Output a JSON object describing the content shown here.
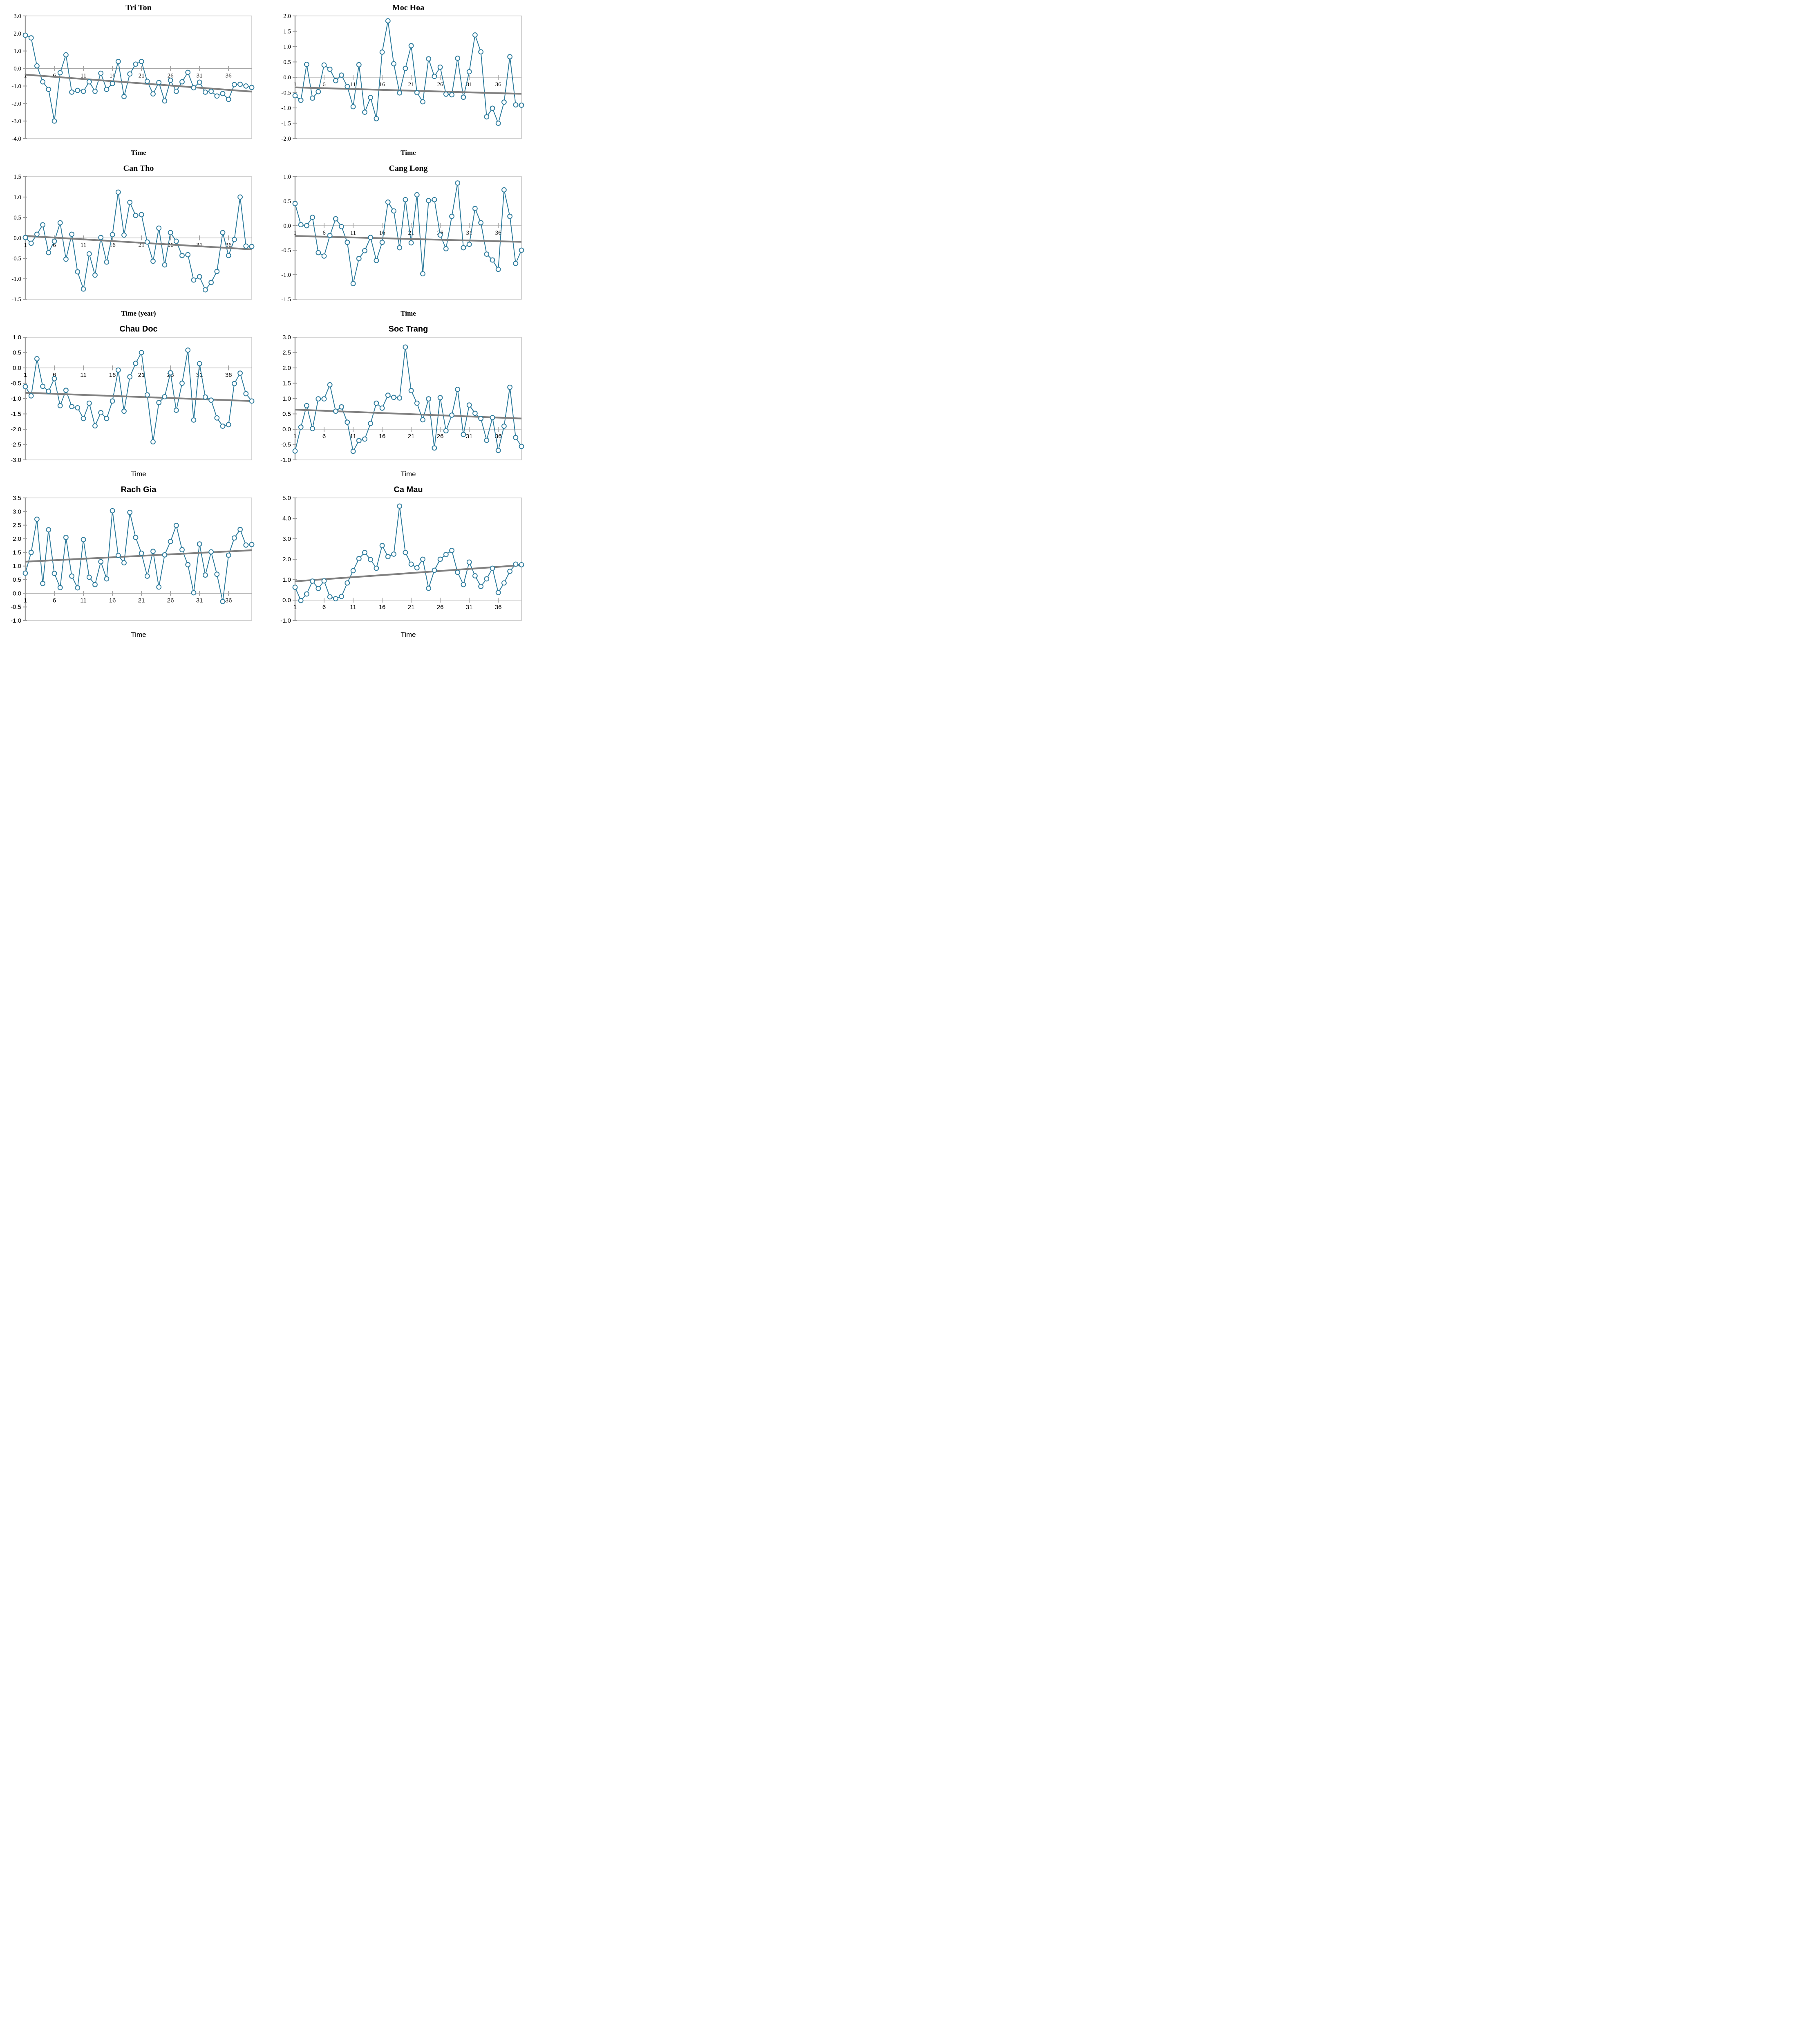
{
  "figure": {
    "description_visible_text_only": "grid of eight time-series charts",
    "columns": 2,
    "rows": 4
  },
  "colors": {
    "series_line": "#2E7C9D",
    "marker_fill": "#FFFFFF",
    "trend_line": "#808080",
    "axis_line": "#9B9B9B",
    "zero_line": "#A6A6A6",
    "frame": "#C9C9C9",
    "text": "#000000",
    "background": "#FFFFFF"
  },
  "chart_data": [
    {
      "type": "line",
      "title": "Tri Ton",
      "xlabel": "Time",
      "ylabel": "",
      "label_style": "serif",
      "ylim": [
        -4.0,
        3.0
      ],
      "ytick_step": 1.0,
      "xticks": [
        1,
        6,
        11,
        16,
        21,
        26,
        31,
        36
      ],
      "x_start": 1,
      "values": [
        1.9,
        1.75,
        0.15,
        -0.76,
        -1.19,
        -3.0,
        -0.24,
        0.78,
        -1.35,
        -1.25,
        -1.3,
        -0.76,
        -1.3,
        -0.27,
        -1.19,
        -0.86,
        0.4,
        -1.6,
        -0.31,
        0.25,
        0.4,
        -0.73,
        -1.45,
        -0.8,
        -1.85,
        -0.67,
        -1.3,
        -0.76,
        -0.22,
        -1.1,
        -0.78,
        -1.35,
        -1.3,
        -1.57,
        -1.43,
        -1.76,
        -0.92,
        -0.9,
        -1.0,
        -1.08
      ],
      "trend_line": {
        "start": -0.35,
        "end": -1.32
      },
      "grid": false,
      "legend": "none"
    },
    {
      "type": "line",
      "title": "Moc Hoa",
      "xlabel": "Time",
      "ylabel": "",
      "label_style": "serif",
      "ylim": [
        -2.0,
        2.0
      ],
      "ytick_step": 0.5,
      "xticks": [
        1,
        6,
        11,
        16,
        21,
        26,
        31,
        36
      ],
      "x_start": 1,
      "values": [
        -0.6,
        -0.75,
        0.42,
        -0.68,
        -0.47,
        0.4,
        0.26,
        -0.11,
        0.07,
        -0.3,
        -0.96,
        0.41,
        -1.14,
        -0.66,
        -1.35,
        0.82,
        1.84,
        0.44,
        -0.51,
        0.29,
        1.03,
        -0.5,
        -0.8,
        0.6,
        0.03,
        0.33,
        -0.55,
        -0.57,
        0.62,
        -0.65,
        0.18,
        1.38,
        0.83,
        -1.29,
        -1.01,
        -1.5,
        -0.81,
        0.67,
        -0.9,
        -0.91
      ],
      "trend_line": {
        "start": -0.33,
        "end": -0.54
      },
      "grid": false,
      "legend": "none"
    },
    {
      "type": "line",
      "title": "Can Tho",
      "xlabel": "Time (year)",
      "ylabel": "",
      "label_style": "serif",
      "ylim": [
        -1.5,
        1.5
      ],
      "ytick_step": 0.5,
      "xticks": [
        1,
        6,
        11,
        16,
        21,
        26,
        31,
        36
      ],
      "x_start": 1,
      "values": [
        0.01,
        -0.13,
        0.09,
        0.32,
        -0.36,
        -0.08,
        0.37,
        -0.52,
        0.09,
        -0.83,
        -1.25,
        -0.39,
        -0.91,
        0.01,
        -0.59,
        0.08,
        1.12,
        0.07,
        0.87,
        0.55,
        0.57,
        -0.1,
        -0.57,
        0.24,
        -0.66,
        0.13,
        -0.08,
        -0.43,
        -0.41,
        -1.03,
        -0.95,
        -1.27,
        -1.09,
        -0.82,
        0.13,
        -0.43,
        -0.04,
        1.0,
        -0.2,
        -0.21
      ],
      "trend_line": {
        "start": 0.05,
        "end": -0.28
      },
      "grid": false,
      "legend": "none"
    },
    {
      "type": "line",
      "title": "Cang Long",
      "xlabel": "Time",
      "ylabel": "",
      "label_style": "serif",
      "ylim": [
        -1.5,
        1.0
      ],
      "ytick_step": 0.5,
      "xticks": [
        1,
        6,
        11,
        16,
        21,
        26,
        31,
        36
      ],
      "x_start": 1,
      "values": [
        0.45,
        0.02,
        0.0,
        0.17,
        -0.55,
        -0.62,
        -0.2,
        0.14,
        -0.02,
        -0.34,
        -1.18,
        -0.67,
        -0.51,
        -0.24,
        -0.71,
        -0.34,
        0.48,
        0.3,
        -0.45,
        0.53,
        -0.35,
        0.63,
        -0.98,
        0.51,
        0.53,
        -0.19,
        -0.47,
        0.19,
        0.87,
        -0.45,
        -0.38,
        0.35,
        0.06,
        -0.58,
        -0.7,
        -0.89,
        0.73,
        0.19,
        -0.77,
        -0.5
      ],
      "trend_line": {
        "start": -0.21,
        "end": -0.33
      },
      "grid": false,
      "legend": "none"
    },
    {
      "type": "line",
      "title": "Chau Doc",
      "xlabel": "Time",
      "ylabel": "",
      "label_style": "sans",
      "ylim": [
        -3.0,
        1.0
      ],
      "ytick_step": 0.5,
      "xticks": [
        1,
        6,
        11,
        16,
        21,
        26,
        31,
        36
      ],
      "x_start": 1,
      "values": [
        -0.61,
        -0.91,
        0.3,
        -0.6,
        -0.76,
        -0.35,
        -1.23,
        -0.73,
        -1.26,
        -1.3,
        -1.65,
        -1.15,
        -1.89,
        -1.46,
        -1.65,
        -1.08,
        -0.07,
        -1.41,
        -0.29,
        0.15,
        0.5,
        -0.88,
        -2.41,
        -1.13,
        -0.94,
        -0.16,
        -1.38,
        -0.5,
        0.58,
        -1.7,
        0.14,
        -0.95,
        -1.05,
        -1.63,
        -1.9,
        -1.85,
        -0.51,
        -0.17,
        -0.84,
        -1.08
      ],
      "trend_line": {
        "start": -0.81,
        "end": -1.08
      },
      "grid": false,
      "legend": "none"
    },
    {
      "type": "line",
      "title": "Soc Trang",
      "xlabel": "Time",
      "ylabel": "",
      "label_style": "sans",
      "ylim": [
        -1.0,
        3.0
      ],
      "ytick_step": 0.5,
      "xticks": [
        1,
        6,
        11,
        16,
        21,
        26,
        31,
        36
      ],
      "x_start": 1,
      "values": [
        -0.71,
        0.07,
        0.77,
        0.02,
        0.99,
        0.99,
        1.45,
        0.59,
        0.73,
        0.23,
        -0.72,
        -0.37,
        -0.32,
        0.19,
        0.85,
        0.69,
        1.11,
        1.04,
        1.02,
        2.68,
        1.26,
        0.85,
        0.31,
        0.99,
        -0.61,
        1.03,
        -0.05,
        0.46,
        1.3,
        -0.17,
        0.79,
        0.52,
        0.35,
        -0.36,
        0.38,
        -0.69,
        0.1,
        1.37,
        -0.27,
        -0.56
      ],
      "trend_line": {
        "start": 0.64,
        "end": 0.35
      },
      "grid": false,
      "legend": "none"
    },
    {
      "type": "line",
      "title": "Rach Gia",
      "xlabel": "Time",
      "ylabel": "",
      "label_style": "sans",
      "ylim": [
        -1.0,
        3.5
      ],
      "ytick_step": 0.5,
      "xticks": [
        1,
        6,
        11,
        16,
        21,
        26,
        31,
        36
      ],
      "x_start": 1,
      "values": [
        0.74,
        1.5,
        2.72,
        0.36,
        2.33,
        0.73,
        0.21,
        2.05,
        0.63,
        0.2,
        1.97,
        0.59,
        0.32,
        1.16,
        0.53,
        3.03,
        1.39,
        1.12,
        2.97,
        2.05,
        1.47,
        0.63,
        1.54,
        0.23,
        1.41,
        1.9,
        2.49,
        1.6,
        1.05,
        0.02,
        1.81,
        0.67,
        1.52,
        0.7,
        -0.3,
        1.4,
        2.03,
        2.34,
        1.77,
        1.79
      ],
      "trend_line": {
        "start": 1.16,
        "end": 1.58
      },
      "grid": false,
      "legend": "none"
    },
    {
      "type": "line",
      "title": "Ca Mau",
      "xlabel": "Time",
      "ylabel": "",
      "label_style": "sans",
      "ylim": [
        -1.0,
        5.0
      ],
      "ytick_step": 1.0,
      "xticks": [
        1,
        6,
        11,
        16,
        21,
        26,
        31,
        36
      ],
      "x_start": 1,
      "values": [
        0.63,
        -0.02,
        0.3,
        0.93,
        0.57,
        0.94,
        0.16,
        0.07,
        0.18,
        0.84,
        1.44,
        2.03,
        2.33,
        1.98,
        1.56,
        2.67,
        2.13,
        2.25,
        4.6,
        2.33,
        1.76,
        1.58,
        2.0,
        0.58,
        1.46,
        2.0,
        2.23,
        2.43,
        1.36,
        0.76,
        1.86,
        1.19,
        0.67,
        1.04,
        1.56,
        0.37,
        0.84,
        1.41,
        1.76,
        1.73
      ],
      "trend_line": {
        "start": 0.92,
        "end": 1.71
      },
      "grid": false,
      "legend": "none"
    }
  ]
}
